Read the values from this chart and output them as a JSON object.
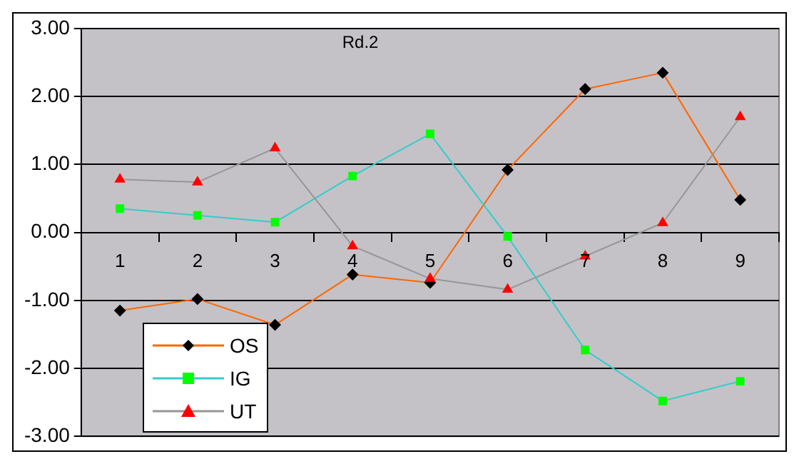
{
  "chart_data": {
    "type": "line",
    "title": "Rd.2",
    "categories": [
      "1",
      "2",
      "3",
      "4",
      "5",
      "6",
      "7",
      "8",
      "9"
    ],
    "series": [
      {
        "name": "OS",
        "color": "#ff6600",
        "colors": [
          "#000000",
          "#000000",
          "#000000",
          "#000000",
          "#000000",
          "#000000",
          "#000000",
          "#000000",
          "#000000"
        ],
        "marker": "diamond",
        "values": [
          -1.15,
          -0.98,
          -1.36,
          -0.62,
          -0.74,
          0.92,
          2.11,
          2.35,
          0.48
        ]
      },
      {
        "name": "IG",
        "color": "#33cccc",
        "colors": [
          "#00ff00",
          "#00ff00",
          "#00ff00",
          "#00ff00",
          "#00ff00",
          "#00ff00",
          "#00ff00",
          "#00ff00",
          "#00ff00"
        ],
        "marker": "square",
        "values": [
          0.35,
          0.25,
          0.15,
          0.83,
          1.45,
          -0.06,
          -1.73,
          -2.48,
          -2.19
        ]
      },
      {
        "name": "UT",
        "color": "#969696",
        "colors": [
          "#ff0000",
          "#ff0000",
          "#ff0000",
          "#ff0000",
          "#ff0000",
          "#ff0000",
          "#ff0000",
          "#ff0000",
          "#ff0000"
        ],
        "marker": "triangle",
        "values": [
          0.78,
          0.74,
          1.24,
          -0.2,
          -0.68,
          -0.84,
          -0.35,
          0.14,
          1.7
        ]
      }
    ],
    "ylim": [
      -3,
      3
    ],
    "yticks": [
      {
        "value": -3,
        "label": "-3.00"
      },
      {
        "value": -2,
        "label": "-2.00"
      },
      {
        "value": -1,
        "label": "-1.00"
      },
      {
        "value": 0,
        "label": "0.00"
      },
      {
        "value": 1,
        "label": "1.00"
      },
      {
        "value": 2,
        "label": "2.00"
      },
      {
        "value": 3,
        "label": "3.00"
      }
    ],
    "grid": "y",
    "legend": "bottom left",
    "line_style": "solid"
  }
}
